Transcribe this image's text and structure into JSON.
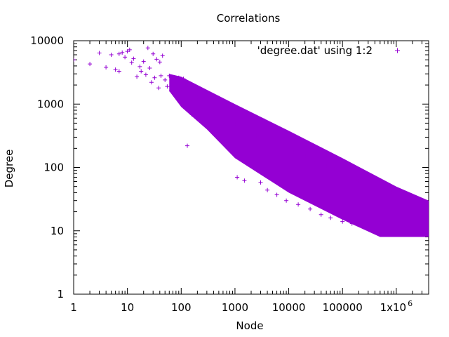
{
  "chart_data": {
    "type": "scatter",
    "title": "Correlations",
    "xlabel": "Node",
    "ylabel": "Degree",
    "x_scale": "log",
    "y_scale": "log",
    "xlim": [
      1,
      4000000
    ],
    "ylim": [
      1,
      10000
    ],
    "grid": false,
    "legend_position": "top-right",
    "x_ticks": [
      {
        "value": 1,
        "label": "1"
      },
      {
        "value": 10,
        "label": "10"
      },
      {
        "value": 100,
        "label": "100"
      },
      {
        "value": 1000,
        "label": "1000"
      },
      {
        "value": 10000,
        "label": "10000"
      },
      {
        "value": 100000,
        "label": "100000"
      },
      {
        "value": 1000000,
        "label": "1x10",
        "superscript": "6"
      }
    ],
    "y_ticks": [
      {
        "value": 1,
        "label": "1"
      },
      {
        "value": 10,
        "label": "10"
      },
      {
        "value": 100,
        "label": "100"
      },
      {
        "value": 1000,
        "label": "1000"
      },
      {
        "value": 10000,
        "label": "10000"
      }
    ],
    "series": [
      {
        "name": "'degree.dat' using 1:2",
        "color": "#9400d3",
        "marker": "+",
        "points": [
          [
            1,
            5000
          ],
          [
            2,
            4300
          ],
          [
            3,
            6400
          ],
          [
            4,
            3800
          ],
          [
            5,
            6000
          ],
          [
            6,
            3500
          ],
          [
            7,
            6200
          ],
          [
            7,
            3300
          ],
          [
            8,
            6500
          ],
          [
            9,
            5500
          ],
          [
            10,
            6800
          ],
          [
            11,
            7200
          ],
          [
            12,
            4500
          ],
          [
            13,
            5200
          ],
          [
            15,
            2700
          ],
          [
            17,
            3900
          ],
          [
            18,
            3300
          ],
          [
            20,
            4700
          ],
          [
            22,
            2900
          ],
          [
            24,
            7700
          ],
          [
            26,
            3700
          ],
          [
            28,
            2200
          ],
          [
            30,
            6200
          ],
          [
            32,
            2600
          ],
          [
            35,
            5100
          ],
          [
            38,
            1800
          ],
          [
            40,
            4600
          ],
          [
            42,
            2800
          ],
          [
            45,
            5800
          ],
          [
            50,
            2400
          ],
          [
            55,
            1900
          ],
          [
            60,
            2800
          ],
          [
            65,
            1600
          ],
          [
            70,
            2200
          ],
          [
            80,
            1500
          ],
          [
            90,
            2600
          ],
          [
            100,
            1700
          ],
          [
            110,
            2500
          ],
          [
            120,
            1900
          ],
          [
            130,
            220
          ],
          [
            150,
            1200
          ],
          [
            160,
            680
          ],
          [
            200,
            1300
          ],
          [
            250,
            900
          ],
          [
            300,
            1100
          ],
          [
            400,
            800
          ],
          [
            500,
            1250
          ],
          [
            600,
            500
          ],
          [
            700,
            700
          ],
          [
            800,
            600
          ],
          [
            1000,
            480
          ],
          [
            1100,
            70
          ],
          [
            1500,
            62
          ],
          [
            1800,
            250
          ],
          [
            2000,
            420
          ],
          [
            2500,
            320
          ],
          [
            3000,
            58
          ],
          [
            3500,
            550
          ],
          [
            4000,
            44
          ],
          [
            5000,
            280
          ],
          [
            6000,
            37
          ],
          [
            8000,
            220
          ],
          [
            9000,
            30
          ],
          [
            12000,
            175
          ],
          [
            15000,
            26
          ],
          [
            20000,
            150
          ],
          [
            25000,
            22
          ],
          [
            30000,
            120
          ],
          [
            40000,
            18
          ],
          [
            50000,
            105
          ],
          [
            60000,
            16
          ],
          [
            70000,
            95
          ],
          [
            100000,
            14
          ],
          [
            120000,
            80
          ],
          [
            150000,
            13
          ],
          [
            200000,
            62
          ],
          [
            300000,
            11
          ],
          [
            400000,
            52
          ],
          [
            600000,
            10
          ],
          [
            800000,
            40
          ],
          [
            1200000,
            9
          ],
          [
            1600000,
            32
          ],
          [
            2200000,
            9
          ],
          [
            3000000,
            22
          ],
          [
            3500000,
            12
          ]
        ]
      }
    ]
  }
}
